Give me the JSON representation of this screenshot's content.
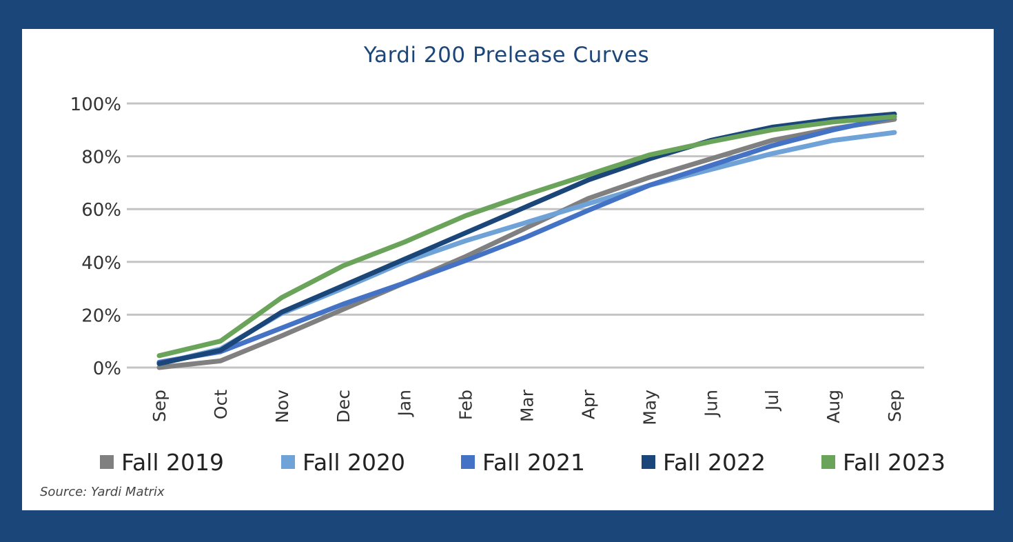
{
  "frame": {
    "background": "#1b4679",
    "card_background": "#ffffff"
  },
  "source": "Source: Yardi Matrix",
  "chart_data": {
    "type": "line",
    "title": "Yardi 200 Prelease Curves",
    "xlabel": "",
    "ylabel": "",
    "categories": [
      "Sep",
      "Oct",
      "Nov",
      "Dec",
      "Jan",
      "Feb",
      "Mar",
      "Apr",
      "May",
      "Jun",
      "Jul",
      "Aug",
      "Sep"
    ],
    "yticks": [
      "0%",
      "20%",
      "40%",
      "60%",
      "80%",
      "100%"
    ],
    "ylim": [
      0,
      100
    ],
    "grid": true,
    "legend_position": "bottom",
    "series": [
      {
        "name": "Fall 2019",
        "color": "#808080",
        "values": [
          0,
          2.5,
          12,
          22,
          32,
          42,
          53,
          64,
          72,
          79,
          86,
          90.5,
          94
        ]
      },
      {
        "name": "Fall 2020",
        "color": "#6fa3d8",
        "values": [
          1.5,
          7,
          20.5,
          30,
          40,
          48,
          55,
          62,
          69,
          75,
          81,
          86,
          89
        ]
      },
      {
        "name": "Fall 2021",
        "color": "#4472c4",
        "values": [
          2,
          6,
          15,
          24,
          32,
          40.5,
          49.5,
          59.5,
          69,
          76.5,
          84,
          90,
          95
        ]
      },
      {
        "name": "Fall 2022",
        "color": "#1b4679",
        "values": [
          1.5,
          6.5,
          21,
          31,
          41,
          51,
          61,
          71,
          79,
          86,
          91,
          94,
          96
        ]
      },
      {
        "name": "Fall 2023",
        "color": "#6aa35a",
        "values": [
          4.5,
          10,
          26.5,
          38.5,
          47.5,
          57.5,
          65.5,
          73,
          80.5,
          85.5,
          90,
          93,
          95
        ]
      }
    ]
  }
}
